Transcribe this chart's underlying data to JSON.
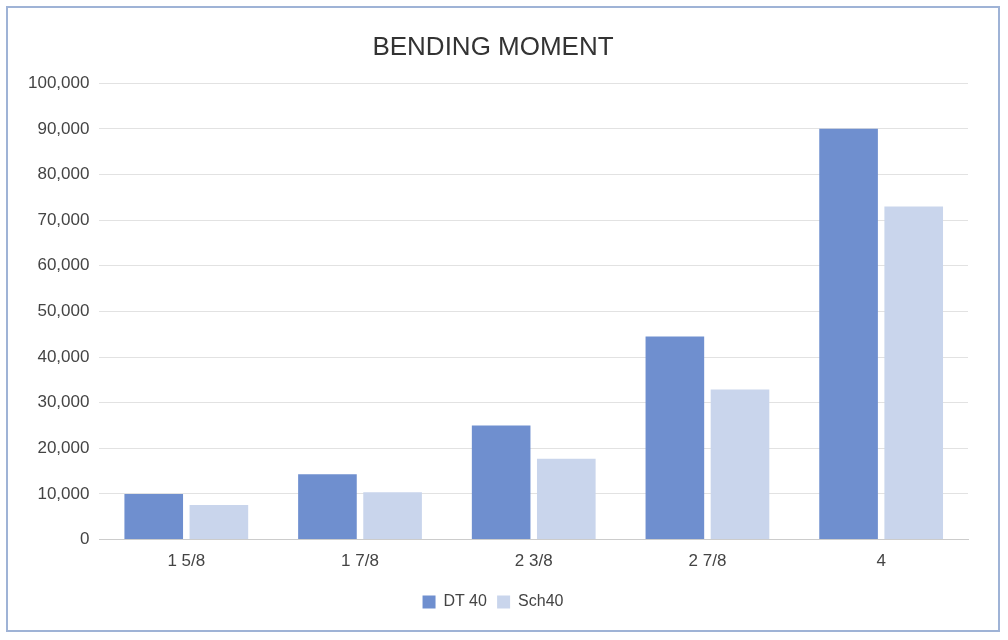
{
  "chart_data": {
    "type": "bar",
    "title": "BENDING MOMENT",
    "categories": [
      "1 5/8",
      "1 7/8",
      "2 3/8",
      "2 7/8",
      "4"
    ],
    "series": [
      {
        "name": "DT 40",
        "color": "#6f8fcf",
        "values": [
          10000,
          14300,
          25000,
          44500,
          90000
        ]
      },
      {
        "name": "Sch40",
        "color": "#c9d5ec",
        "values": [
          7600,
          10400,
          17700,
          32900,
          73000
        ]
      }
    ],
    "ylim": [
      0,
      100000
    ],
    "yticks": [
      0,
      {
        "value": 10000,
        "label": "10,000"
      },
      {
        "value": 20000,
        "label": "20,000"
      },
      {
        "value": 30000,
        "label": "30,000"
      },
      {
        "value": 40000,
        "label": "40,000"
      },
      {
        "value": 50000,
        "label": "50,000"
      },
      {
        "value": 60000,
        "label": "60,000"
      },
      {
        "value": 70000,
        "label": "70,000"
      },
      {
        "value": 80000,
        "label": "80,000"
      },
      {
        "value": 90000,
        "label": "90,000"
      },
      {
        "value": 100000,
        "label": "100,000"
      }
    ],
    "grid": "y",
    "legend": "bottom"
  }
}
